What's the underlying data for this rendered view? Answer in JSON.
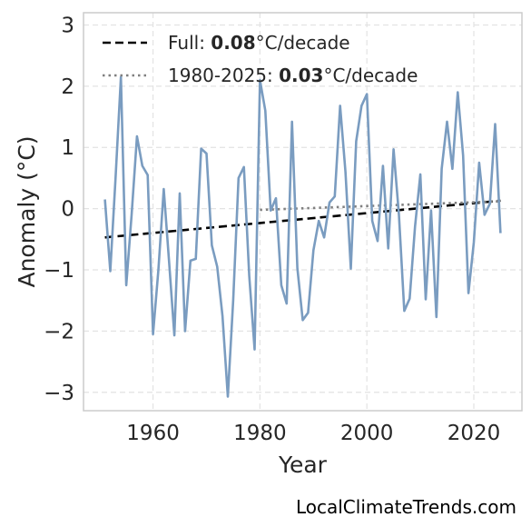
{
  "chart_data": {
    "type": "line",
    "xlabel": "Year",
    "ylabel": "Anomaly (°C)",
    "xlim": [
      1947,
      2029
    ],
    "ylim": [
      -3.3,
      3.2
    ],
    "x_ticks": [
      1960,
      1980,
      2000,
      2020
    ],
    "y_ticks": [
      -3,
      -2,
      -1,
      0,
      1,
      2,
      3
    ],
    "y_tick_labels": [
      "−3",
      "−2",
      "−1",
      "0",
      "1",
      "2",
      "3"
    ],
    "grid": true,
    "legend_position": "top-left",
    "series": [
      {
        "color": "#7a9cc0",
        "x": [
          1951,
          1952,
          1953,
          1954,
          1955,
          1956,
          1957,
          1958,
          1959,
          1960,
          1961,
          1962,
          1963,
          1964,
          1965,
          1966,
          1967,
          1968,
          1969,
          1970,
          1971,
          1972,
          1973,
          1974,
          1975,
          1976,
          1977,
          1978,
          1979,
          1980,
          1981,
          1982,
          1983,
          1984,
          1985,
          1986,
          1987,
          1988,
          1989,
          1990,
          1991,
          1992,
          1993,
          1994,
          1995,
          1996,
          1997,
          1998,
          1999,
          2000,
          2001,
          2002,
          2003,
          2004,
          2005,
          2006,
          2007,
          2008,
          2009,
          2010,
          2011,
          2012,
          2013,
          2014,
          2015,
          2016,
          2017,
          2018,
          2019,
          2020,
          2021,
          2022,
          2023,
          2024,
          2025
        ],
        "values": [
          0.15,
          -1.02,
          0.5,
          2.15,
          -1.25,
          -0.1,
          1.18,
          0.7,
          0.55,
          -2.05,
          -1.0,
          0.32,
          -0.85,
          -2.07,
          0.25,
          -2.0,
          -0.85,
          -0.82,
          0.98,
          0.9,
          -0.6,
          -0.95,
          -1.75,
          -3.07,
          -1.5,
          0.5,
          0.68,
          -1.1,
          -2.3,
          2.1,
          1.6,
          -0.03,
          0.17,
          -1.25,
          -1.55,
          1.42,
          -0.97,
          -1.82,
          -1.7,
          -0.68,
          -0.2,
          -0.47,
          0.1,
          0.2,
          1.68,
          0.6,
          -0.98,
          1.1,
          1.68,
          1.87,
          -0.2,
          -0.53,
          0.7,
          -0.65,
          0.97,
          -0.1,
          -1.67,
          -1.47,
          -0.3,
          0.56,
          -1.48,
          -0.03,
          -1.77,
          0.65,
          1.42,
          0.65,
          1.9,
          0.87,
          -1.38,
          -0.55,
          0.75,
          -0.1,
          0.08,
          1.38,
          -0.4
        ]
      }
    ],
    "trends": [
      {
        "key": "full",
        "label_prefix": "Full: ",
        "label_value": "0.08",
        "label_suffix": "°C/decade",
        "style": "dashed",
        "color": "#000000",
        "x": [
          1951,
          2025
        ],
        "y": [
          -0.47,
          0.13
        ]
      },
      {
        "key": "recent",
        "label_prefix": "1980-2025: ",
        "label_value": "0.03",
        "label_suffix": "°C/decade",
        "style": "dotted",
        "color": "#808080",
        "x": [
          1980,
          2025
        ],
        "y": [
          -0.02,
          0.12
        ]
      }
    ]
  },
  "watermark": "LocalClimateTrends.com"
}
